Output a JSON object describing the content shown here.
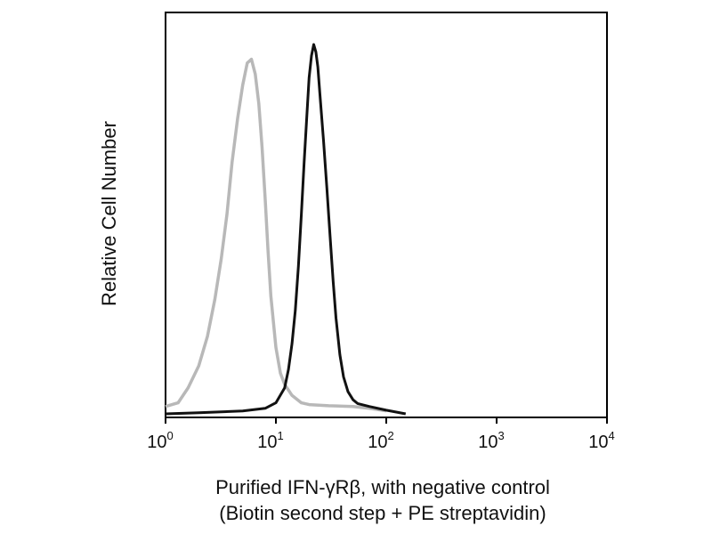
{
  "chart_data": {
    "type": "line",
    "xscale": "log",
    "xlim": [
      1,
      10000
    ],
    "ylim": [
      0,
      100
    ],
    "grid": false,
    "legend": "none",
    "xticks": [
      {
        "value": 1,
        "base": "10",
        "exp": "0"
      },
      {
        "value": 10,
        "base": "10",
        "exp": "1"
      },
      {
        "value": 100,
        "base": "10",
        "exp": "2"
      },
      {
        "value": 1000,
        "base": "10",
        "exp": "3"
      },
      {
        "value": 10000,
        "base": "10",
        "exp": "4"
      }
    ],
    "ylabel": "Relative Cell Number",
    "xlabel_line1": "Purified IFN-γRβ, with negative control",
    "xlabel_line2": "(Biotin second step + PE streptavidin)",
    "series": [
      {
        "color": "#b8b8b8",
        "x": [
          1.0,
          1.3,
          1.6,
          2.0,
          2.4,
          2.8,
          3.2,
          3.6,
          4.0,
          4.5,
          5.0,
          5.5,
          6.0,
          6.5,
          7.0,
          7.5,
          8.0,
          8.5,
          9.0,
          10.0,
          11.0,
          12.0,
          14.0,
          17.0,
          20.0,
          30.0,
          50.0,
          70.0,
          100.0
        ],
        "y": [
          2,
          3,
          7,
          13,
          21,
          31,
          42,
          54,
          68,
          80,
          89,
          95,
          96,
          92,
          84,
          72,
          58,
          44,
          32,
          18,
          11,
          8,
          5,
          3,
          2.5,
          2.2,
          2,
          1.5,
          0.8
        ]
      },
      {
        "color": "#111111",
        "x": [
          1.0,
          2.0,
          5.0,
          8.0,
          10.0,
          12.0,
          13.0,
          14.0,
          15.0,
          16.0,
          17.0,
          18.0,
          19.0,
          20.0,
          21.0,
          22.0,
          23.0,
          24.0,
          25.0,
          27.0,
          29.0,
          31.0,
          33.0,
          35.0,
          38.0,
          41.0,
          45.0,
          50.0,
          55.0,
          70.0,
          100.0,
          150.0
        ],
        "y": [
          0,
          0.3,
          0.8,
          1.5,
          3,
          7,
          12,
          19,
          28,
          40,
          54,
          68,
          80,
          91,
          97,
          100,
          98,
          94,
          87,
          74,
          61,
          48,
          36,
          26,
          16,
          10,
          6,
          3.8,
          2.8,
          2,
          1,
          0
        ]
      }
    ]
  }
}
